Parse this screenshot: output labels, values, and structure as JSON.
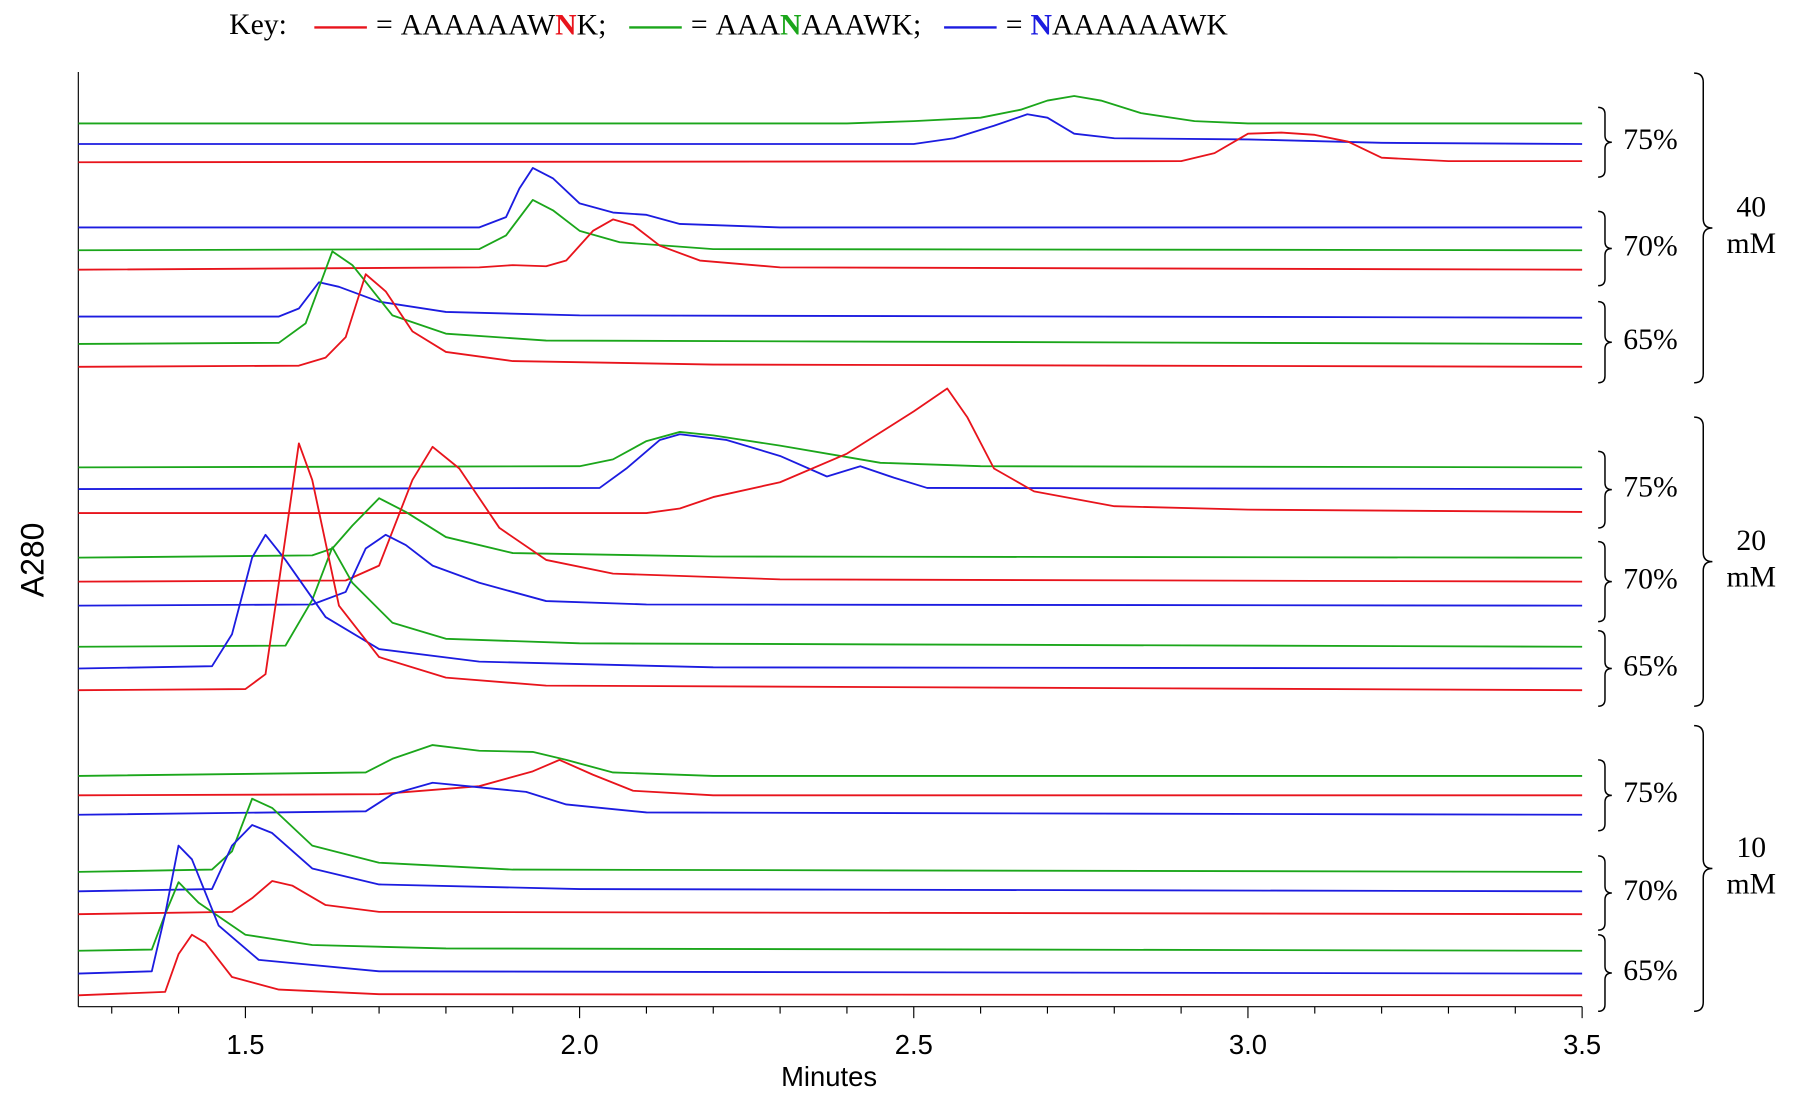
{
  "chart_data": {
    "type": "line",
    "x_label": "Minutes",
    "y_label": "A280",
    "xlim": [
      1.25,
      3.5
    ],
    "ylim": [
      0,
      818
    ],
    "xticks": [
      1.5,
      {
        "value": 2,
        "label": "2.0"
      },
      2.5,
      {
        "value": 3,
        "label": "3.0"
      },
      3.5
    ],
    "xminor_ticks": [
      1.3,
      1.4,
      1.6,
      1.7,
      1.8,
      1.9,
      2.1,
      2.2,
      2.3,
      2.4,
      2.6,
      2.7,
      2.8,
      2.9,
      3.1,
      3.2,
      3.3,
      3.4
    ],
    "legend": {
      "title": "Key:",
      "equals": "=",
      "separator": ";",
      "entries": [
        {
          "name": "AAAAAAWNK",
          "color": "#e8141c"
        },
        {
          "name": "AAANAAAWK",
          "color": "#1ba61b"
        },
        {
          "name": "NAAAAAAWK",
          "color": "#1c1ce0"
        }
      ]
    },
    "groups": [
      {
        "label": [
          "40",
          "mM"
        ],
        "subgroups": [
          {
            "label": "75%",
            "traces": [
              {
                "color": "#1ba61b",
                "x": [
                  1.25,
                  2.4,
                  2.5,
                  2.6,
                  2.66,
                  2.7,
                  2.74,
                  2.78,
                  2.84,
                  2.92,
                  3.0,
                  3.5
                ],
                "values": [
                  773,
                  773,
                  775,
                  778,
                  785,
                  793,
                  797,
                  793,
                  782,
                  775,
                  773,
                  773
                ]
              },
              {
                "color": "#1c1ce0",
                "x": [
                  1.25,
                  2.5,
                  2.56,
                  2.62,
                  2.67,
                  2.7,
                  2.74,
                  2.8,
                  3.0,
                  3.2,
                  3.5
                ],
                "values": [
                  755,
                  755,
                  760,
                  771,
                  781,
                  778,
                  764,
                  760,
                  759,
                  756,
                  755
                ]
              },
              {
                "color": "#e8141c",
                "x": [
                  1.25,
                  2.9,
                  2.95,
                  3.0,
                  3.05,
                  3.1,
                  3.15,
                  3.2,
                  3.3,
                  3.5
                ],
                "values": [
                  739,
                  740,
                  747,
                  764,
                  765,
                  763,
                  757,
                  743,
                  740,
                  740
                ]
              }
            ]
          },
          {
            "label": "70%",
            "traces": [
              {
                "color": "#1c1ce0",
                "x": [
                  1.25,
                  1.85,
                  1.89,
                  1.91,
                  1.93,
                  1.96,
                  2.0,
                  2.05,
                  2.1,
                  2.15,
                  2.3,
                  3.5
                ],
                "values": [
                  682,
                  682,
                  691,
                  716,
                  734,
                  725,
                  703,
                  695,
                  693,
                  685,
                  682,
                  682
                ]
              },
              {
                "color": "#1ba61b",
                "x": [
                  1.25,
                  1.85,
                  1.89,
                  1.93,
                  1.96,
                  2.0,
                  2.06,
                  2.2,
                  3.5
                ],
                "values": [
                  662,
                  663,
                  675,
                  706,
                  697,
                  679,
                  669,
                  663,
                  662
                ]
              },
              {
                "color": "#e8141c",
                "x": [
                  1.25,
                  1.85,
                  1.9,
                  1.95,
                  1.98,
                  2.02,
                  2.05,
                  2.08,
                  2.12,
                  2.18,
                  2.3,
                  3.5
                ],
                "values": [
                  645,
                  647,
                  649,
                  648,
                  653,
                  679,
                  689,
                  684,
                  666,
                  653,
                  647,
                  645
                ]
              }
            ]
          },
          {
            "label": "65%",
            "traces": [
              {
                "color": "#1c1ce0",
                "x": [
                  1.25,
                  1.55,
                  1.58,
                  1.61,
                  1.64,
                  1.7,
                  1.8,
                  2.0,
                  3.5
                ],
                "values": [
                  604,
                  604,
                  611,
                  634,
                  630,
                  617,
                  608,
                  605,
                  603
                ]
              },
              {
                "color": "#1ba61b",
                "x": [
                  1.25,
                  1.55,
                  1.59,
                  1.63,
                  1.66,
                  1.72,
                  1.8,
                  1.95,
                  3.5
                ],
                "values": [
                  580,
                  581,
                  598,
                  661,
                  649,
                  605,
                  589,
                  583,
                  580
                ]
              },
              {
                "color": "#e8141c",
                "x": [
                  1.25,
                  1.58,
                  1.62,
                  1.65,
                  1.68,
                  1.71,
                  1.75,
                  1.8,
                  1.9,
                  2.2,
                  3.5
                ],
                "values": [
                  560,
                  561,
                  568,
                  586,
                  641,
                  626,
                  591,
                  573,
                  565,
                  562,
                  560
                ]
              }
            ]
          }
        ]
      },
      {
        "label": [
          "20",
          "mM"
        ],
        "subgroups": [
          {
            "label": "75%",
            "traces": [
              {
                "color": "#1ba61b",
                "x": [
                  1.25,
                  2.0,
                  2.05,
                  2.1,
                  2.15,
                  2.2,
                  2.3,
                  2.4,
                  2.45,
                  2.6,
                  3.5
                ],
                "values": [
                  472,
                  473,
                  479,
                  495,
                  503,
                  500,
                  491,
                  481,
                  476,
                  473,
                  472
                ]
              },
              {
                "color": "#1c1ce0",
                "x": [
                  1.25,
                  2.03,
                  2.07,
                  2.12,
                  2.15,
                  2.22,
                  2.3,
                  2.37,
                  2.42,
                  2.47,
                  2.52,
                  3.5
                ],
                "values": [
                  453,
                  454,
                  471,
                  496,
                  501,
                  496,
                  482,
                  464,
                  473,
                  463,
                  454,
                  453
                ]
              },
              {
                "color": "#e8141c",
                "x": [
                  1.25,
                  2.1,
                  2.15,
                  2.2,
                  2.3,
                  2.4,
                  2.5,
                  2.55,
                  2.58,
                  2.62,
                  2.68,
                  2.8,
                  3.0,
                  3.5
                ],
                "values": [
                  432,
                  432,
                  436,
                  446,
                  459,
                  484,
                  521,
                  541,
                  516,
                  471,
                  451,
                  438,
                  435,
                  433
                ]
              }
            ]
          },
          {
            "label": "70%",
            "traces": [
              {
                "color": "#1ba61b",
                "x": [
                  1.25,
                  1.6,
                  1.63,
                  1.66,
                  1.7,
                  1.74,
                  1.8,
                  1.9,
                  2.2,
                  3.5
                ],
                "values": [
                  393,
                  395,
                  401,
                  421,
                  445,
                  433,
                  411,
                  397,
                  394,
                  393
                ]
              },
              {
                "color": "#e8141c",
                "x": [
                  1.25,
                  1.65,
                  1.7,
                  1.75,
                  1.78,
                  1.82,
                  1.88,
                  1.95,
                  2.05,
                  2.3,
                  3.5
                ],
                "values": [
                  372,
                  373,
                  386,
                  461,
                  490,
                  471,
                  419,
                  391,
                  379,
                  374,
                  372
                ]
              },
              {
                "color": "#1c1ce0",
                "x": [
                  1.25,
                  1.6,
                  1.65,
                  1.68,
                  1.71,
                  1.74,
                  1.78,
                  1.85,
                  1.95,
                  2.1,
                  3.5
                ],
                "values": [
                  351,
                  352,
                  363,
                  401,
                  413,
                  404,
                  386,
                  371,
                  355,
                  352,
                  351
                ]
              }
            ]
          },
          {
            "label": "65%",
            "traces": [
              {
                "color": "#1ba61b",
                "x": [
                  1.25,
                  1.56,
                  1.6,
                  1.63,
                  1.66,
                  1.72,
                  1.8,
                  2.0,
                  3.5
                ],
                "values": [
                  315,
                  316,
                  356,
                  402,
                  371,
                  336,
                  322,
                  318,
                  315
                ]
              },
              {
                "color": "#1c1ce0",
                "x": [
                  1.25,
                  1.45,
                  1.48,
                  1.51,
                  1.53,
                  1.56,
                  1.62,
                  1.7,
                  1.85,
                  2.2,
                  3.5
                ],
                "values": [
                  296,
                  298,
                  326,
                  393,
                  413,
                  391,
                  341,
                  313,
                  302,
                  297,
                  296
                ]
              },
              {
                "color": "#e8141c",
                "x": [
                  1.25,
                  1.5,
                  1.53,
                  1.56,
                  1.58,
                  1.6,
                  1.64,
                  1.7,
                  1.8,
                  1.95,
                  3.5
                ],
                "values": [
                  277,
                  278,
                  291,
                  411,
                  493,
                  461,
                  351,
                  306,
                  288,
                  281,
                  277
                ]
              }
            ]
          }
        ]
      },
      {
        "label": [
          "10",
          "mM"
        ],
        "subgroups": [
          {
            "label": "75%",
            "traces": [
              {
                "color": "#1ba61b",
                "x": [
                  1.25,
                  1.68,
                  1.72,
                  1.78,
                  1.85,
                  1.93,
                  1.98,
                  2.05,
                  2.2,
                  3.5
                ],
                "values": [
                  202,
                  205,
                  217,
                  229,
                  224,
                  223,
                  216,
                  205,
                  202,
                  202
                ]
              },
              {
                "color": "#e8141c",
                "x": [
                  1.25,
                  1.7,
                  1.85,
                  1.93,
                  1.97,
                  2.02,
                  2.08,
                  2.2,
                  3.5
                ],
                "values": [
                  185,
                  186,
                  193,
                  206,
                  216,
                  203,
                  189,
                  185,
                  185
                ]
              },
              {
                "color": "#1c1ce0",
                "x": [
                  1.25,
                  1.68,
                  1.72,
                  1.78,
                  1.85,
                  1.92,
                  1.98,
                  2.1,
                  3.5
                ],
                "values": [
                  168,
                  171,
                  186,
                  196,
                  192,
                  188,
                  177,
                  170,
                  168
                ]
              }
            ]
          },
          {
            "label": "70%",
            "traces": [
              {
                "color": "#1ba61b",
                "x": [
                  1.25,
                  1.45,
                  1.48,
                  1.51,
                  1.54,
                  1.6,
                  1.7,
                  1.9,
                  3.5
                ],
                "values": [
                  118,
                  120,
                  136,
                  182,
                  174,
                  141,
                  126,
                  120,
                  118
                ]
              },
              {
                "color": "#1c1ce0",
                "x": [
                  1.25,
                  1.45,
                  1.48,
                  1.51,
                  1.54,
                  1.6,
                  1.7,
                  2.0,
                  3.5
                ],
                "values": [
                  101,
                  103,
                  141,
                  159,
                  152,
                  121,
                  107,
                  103,
                  101
                ]
              },
              {
                "color": "#e8141c",
                "x": [
                  1.25,
                  1.48,
                  1.51,
                  1.54,
                  1.57,
                  1.62,
                  1.7,
                  3.5
                ],
                "values": [
                  81,
                  83,
                  95,
                  110,
                  106,
                  89,
                  83,
                  81
                ]
              }
            ]
          },
          {
            "label": "65%",
            "traces": [
              {
                "color": "#1ba61b",
                "x": [
                  1.25,
                  1.36,
                  1.38,
                  1.4,
                  1.43,
                  1.5,
                  1.6,
                  1.8,
                  3.5
                ],
                "values": [
                  49,
                  50,
                  81,
                  109,
                  91,
                  63,
                  54,
                  51,
                  49
                ]
              },
              {
                "color": "#1c1ce0",
                "x": [
                  1.25,
                  1.36,
                  1.38,
                  1.4,
                  1.42,
                  1.46,
                  1.52,
                  1.7,
                  3.5
                ],
                "values": [
                  29,
                  31,
                  81,
                  141,
                  129,
                  71,
                  41,
                  31,
                  29
                ]
              },
              {
                "color": "#e8141c",
                "x": [
                  1.25,
                  1.38,
                  1.4,
                  1.42,
                  1.44,
                  1.48,
                  1.55,
                  1.7,
                  3.5
                ],
                "values": [
                  10,
                  13,
                  46,
                  63,
                  56,
                  26,
                  15,
                  11,
                  10
                ]
              }
            ]
          }
        ]
      }
    ]
  }
}
